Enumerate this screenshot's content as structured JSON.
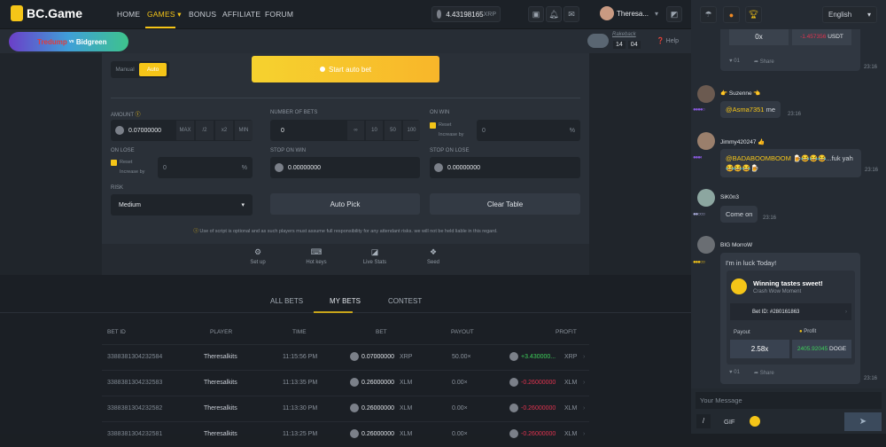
{
  "header": {
    "logo": "BC.Game",
    "nav": [
      "HOME",
      "GAMES",
      "BONUS",
      "AFFILIATE",
      "FORUM"
    ],
    "active_nav": "GAMES",
    "balance": "4.43198165",
    "currency": "XRP",
    "username": "Theresa...",
    "language": "English"
  },
  "banner": {
    "text_a": "Tredump",
    "text_vs": "vs",
    "text_b": "Bidgreen"
  },
  "rakeback": {
    "label": "Rakeback",
    "hours": "14",
    "minutes": "04"
  },
  "help": "Help",
  "game": {
    "mode_manual": "Manual",
    "mode_auto": "Auto",
    "start_label": "Start auto bet",
    "amount_label": "AMOUNT",
    "amount_value": "0.07000000",
    "amount_btns": [
      "MAX",
      "/2",
      "x2",
      "MIN"
    ],
    "num_bets_label": "NUMBER OF BETS",
    "num_bets_value": "0",
    "num_bets_btns": [
      "∞",
      "10",
      "50",
      "100"
    ],
    "on_win_label": "ON WIN",
    "on_lose_label": "ON LOSE",
    "reset": "Reset",
    "increase_by": "Increase by",
    "win_pct": "0",
    "lose_pct": "0",
    "pct": "%",
    "stop_win_label": "STOP ON WIN",
    "stop_win_value": "0.00000000",
    "stop_lose_label": "STOP ON LOSE",
    "stop_lose_value": "0.00000000",
    "risk_label": "RISK",
    "risk_value": "Medium",
    "auto_pick": "Auto Pick",
    "clear_table": "Clear Table",
    "disclaimer": "Use of script is optional and as such players must assume full responsibility for any attendant risks. we will not be held liable in this regard."
  },
  "tools": [
    "Set up",
    "Hot keys",
    "Live Stats",
    "Seed"
  ],
  "bets": {
    "tabs": [
      "ALL BETS",
      "MY BETS",
      "CONTEST"
    ],
    "active_tab": "MY BETS",
    "columns": [
      "BET ID",
      "PLAYER",
      "TIME",
      "BET",
      "PAYOUT",
      "PROFIT"
    ],
    "rows": [
      {
        "id": "3388381304232584",
        "player": "Theresalkits",
        "time": "11:15:56 PM",
        "bet": "0.07000000",
        "bet_cur": "XRP",
        "payout": "50.00×",
        "profit": "+3.430000...",
        "profit_cur": "XRP",
        "win": true
      },
      {
        "id": "3388381304232583",
        "player": "Theresalkits",
        "time": "11:13:35 PM",
        "bet": "0.26000000",
        "bet_cur": "XLM",
        "payout": "0.00×",
        "profit": "-0.26000000",
        "profit_cur": "XLM",
        "win": false
      },
      {
        "id": "3388381304232582",
        "player": "Theresalkits",
        "time": "11:13:30 PM",
        "bet": "0.26000000",
        "bet_cur": "XLM",
        "payout": "0.00×",
        "profit": "-0.26000000",
        "profit_cur": "XLM",
        "win": false
      },
      {
        "id": "3388381304232581",
        "player": "Theresalkits",
        "time": "11:13:25 PM",
        "bet": "0.26000000",
        "bet_cur": "XLM",
        "payout": "0.00×",
        "profit": "-0.26000000",
        "profit_cur": "XLM",
        "win": false
      }
    ]
  },
  "chat": {
    "top_card": {
      "payout": "0x",
      "profit": "-1.457356",
      "profit_cur": "USDT",
      "likes": "01",
      "share": "Share",
      "time": "23:16"
    },
    "messages": [
      {
        "user": "Suzenne",
        "text_mention": "@Asma7351",
        "text": " me",
        "time": "23:16"
      },
      {
        "user": "Jimmy420247",
        "text_mention": "@BADABOOMBOOM",
        "text": " 🍺😂😂😂...fuk yah 😂😂😂🍺",
        "time": "23:16"
      },
      {
        "user": "SiK0n3",
        "text": "Come on",
        "time": "23:16"
      },
      {
        "user": "BIG MorroW",
        "text": "I'm in luck Today!",
        "time": "23:16"
      }
    ],
    "win_card": {
      "title": "Winning tastes sweet!",
      "subtitle": "Crash Wow Moment",
      "bet_id": "Bet ID: #280161863",
      "payout_label": "Payout",
      "payout": "2.58x",
      "profit_label": "Profit",
      "profit": "2405.92045",
      "profit_cur": "DOGE",
      "likes": "01",
      "share": "Share"
    },
    "input_placeholder": "Your Message",
    "gif": "GIF"
  },
  "colors": {
    "accent": "#f5c518",
    "win": "#3ecf5a",
    "loss": "#e0334f"
  }
}
